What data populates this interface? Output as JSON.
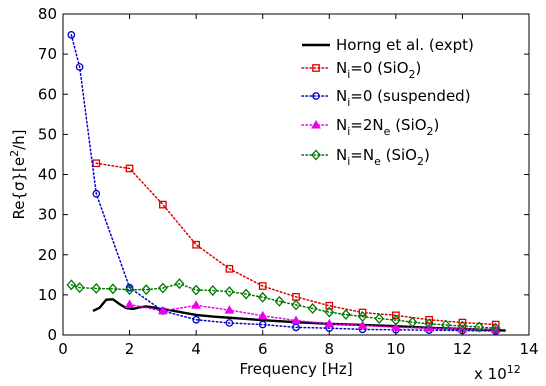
{
  "chart_data": {
    "type": "line",
    "xlabel": "Frequency [Hz]",
    "ylabel": "Re[σ] [e²/h]",
    "ylabel_parts": {
      "base": "Re{σ}[e",
      "sup": "2",
      "tail": "/h]"
    },
    "x_multiplier": {
      "base": "x 10",
      "exp": "12"
    },
    "xlim": [
      0,
      14
    ],
    "ylim": [
      0,
      80
    ],
    "xticks": [
      0,
      2,
      4,
      6,
      8,
      10,
      12,
      14
    ],
    "yticks": [
      0,
      10,
      20,
      30,
      40,
      50,
      60,
      70,
      80
    ],
    "x_tick_labels": [
      "0",
      "2",
      "4",
      "6",
      "8",
      "10",
      "12",
      "14"
    ],
    "y_tick_labels": [
      "0",
      "10",
      "20",
      "30",
      "40",
      "50",
      "60",
      "70",
      "80"
    ],
    "legend_position": "top-right",
    "grid": false,
    "series": [
      {
        "name": "Horng et al. (expt)",
        "legend": {
          "parts": [
            {
              "t": "Horng et al. (expt)"
            }
          ]
        },
        "color": "#000000",
        "line": "solid",
        "marker": "none",
        "width": 2.4,
        "x": [
          0.9,
          1.1,
          1.3,
          1.5,
          1.7,
          1.9,
          2.1,
          2.3,
          2.5,
          2.7,
          2.9,
          3.2,
          3.6,
          4.0,
          4.5,
          5.0,
          5.5,
          6.0,
          7.0,
          8.0,
          9.0,
          10.0,
          11.0,
          12.0,
          13.3
        ],
        "y": [
          6.0,
          6.8,
          8.8,
          8.9,
          7.7,
          6.7,
          6.5,
          6.9,
          7.1,
          6.9,
          6.5,
          6.2,
          5.6,
          5.0,
          4.6,
          4.3,
          4.0,
          3.7,
          3.2,
          2.8,
          2.5,
          2.2,
          1.8,
          1.5,
          1.1
        ]
      },
      {
        "name": "Ni=0 (SiO2)",
        "legend": {
          "parts": [
            {
              "t": "N"
            },
            {
              "t": "i",
              "sub": true
            },
            {
              "t": "=0 (SiO"
            },
            {
              "t": "2",
              "sub": true
            },
            {
              "t": ")"
            }
          ]
        },
        "color": "#dd0000",
        "line": "dotted",
        "marker": "square",
        "x": [
          1,
          2,
          3,
          4,
          5,
          6,
          7,
          8,
          9,
          10,
          11,
          12,
          13
        ],
        "y": [
          42.8,
          41.5,
          32.5,
          22.5,
          16.5,
          12.2,
          9.5,
          7.3,
          5.6,
          4.9,
          3.8,
          3.1,
          2.6
        ]
      },
      {
        "name": "Ni=0 (suspended)",
        "legend": {
          "parts": [
            {
              "t": "N"
            },
            {
              "t": "i",
              "sub": true
            },
            {
              "t": "=0 (suspended)"
            }
          ]
        },
        "color": "#0000cc",
        "line": "dotted",
        "marker": "circle",
        "x": [
          0.25,
          0.5,
          1,
          2,
          3,
          4,
          5,
          6,
          7,
          8,
          9,
          10,
          11,
          12,
          13
        ],
        "y": [
          74.8,
          66.8,
          35.2,
          11.8,
          6.0,
          3.8,
          3.0,
          2.6,
          1.9,
          1.7,
          1.4,
          1.3,
          1.2,
          1.1,
          1.0
        ]
      },
      {
        "name": "Ni=2Ne (SiO2)",
        "legend": {
          "parts": [
            {
              "t": "N"
            },
            {
              "t": "i",
              "sub": true
            },
            {
              "t": "=2N"
            },
            {
              "t": "e",
              "sub": true
            },
            {
              "t": " (SiO"
            },
            {
              "t": "2",
              "sub": true
            },
            {
              "t": ")"
            }
          ]
        },
        "color": "#ee00ee",
        "line": "dotted",
        "marker": "triangle",
        "x": [
          2,
          3,
          4,
          5,
          6,
          7,
          8,
          9,
          10,
          11,
          12,
          13
        ],
        "y": [
          7.6,
          6.0,
          7.4,
          6.2,
          4.8,
          3.6,
          2.8,
          2.4,
          1.9,
          1.7,
          1.5,
          1.3
        ]
      },
      {
        "name": "Ni=Ne (SiO2)",
        "legend": {
          "parts": [
            {
              "t": "N"
            },
            {
              "t": "i",
              "sub": true
            },
            {
              "t": "=N"
            },
            {
              "t": "e",
              "sub": true
            },
            {
              "t": " (SiO"
            },
            {
              "t": "2",
              "sub": true
            },
            {
              "t": ")"
            }
          ]
        },
        "color": "#007700",
        "line": "dotted",
        "marker": "diamond",
        "x": [
          0.25,
          0.5,
          1.0,
          1.5,
          2.0,
          2.5,
          3.0,
          3.5,
          4.0,
          4.5,
          5.0,
          5.5,
          6.0,
          6.5,
          7.0,
          7.5,
          8.0,
          8.5,
          9.0,
          9.5,
          10.0,
          10.5,
          11.0,
          11.5,
          12.0,
          12.5,
          13.0
        ],
        "y": [
          12.5,
          11.8,
          11.6,
          11.5,
          11.3,
          11.3,
          11.7,
          12.8,
          11.2,
          11.1,
          10.8,
          10.2,
          9.4,
          8.4,
          7.5,
          6.6,
          5.7,
          5.1,
          4.6,
          4.1,
          3.7,
          3.2,
          2.8,
          2.5,
          2.2,
          2.0,
          1.7
        ]
      }
    ]
  }
}
